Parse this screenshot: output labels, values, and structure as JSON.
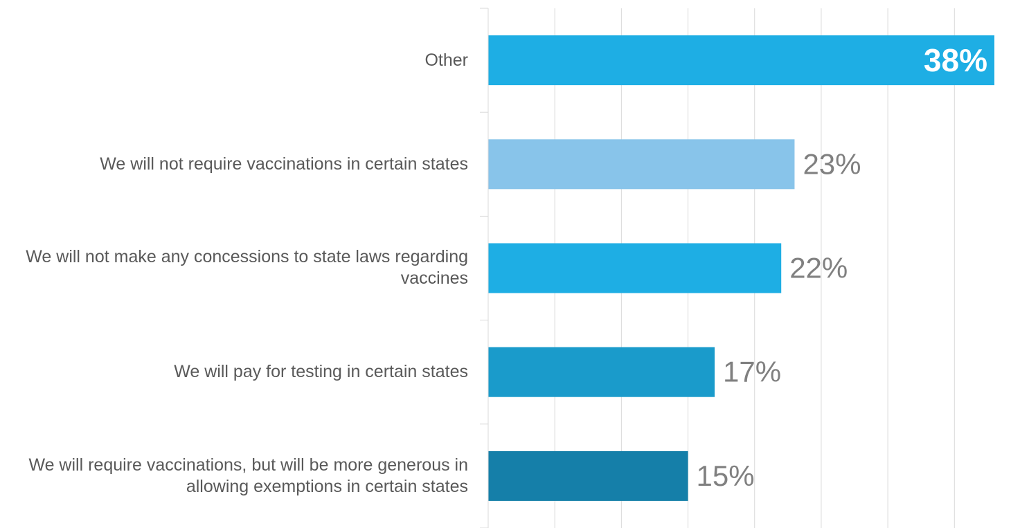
{
  "chart_data": {
    "type": "bar",
    "orientation": "horizontal",
    "categories": [
      "Other",
      "We will not require vaccinations in certain states",
      "We will not make any concessions to state laws regarding vaccines",
      "We will pay for testing in certain states",
      "We will require vaccinations, but will be more generous in allowing exemptions in certain states"
    ],
    "values": [
      38,
      23,
      22,
      17,
      15
    ],
    "value_labels": [
      "38%",
      "23%",
      "22%",
      "17%",
      "15%"
    ],
    "colors": [
      "#1eaee4",
      "#88c4ea",
      "#1eaee4",
      "#1a9bcb",
      "#157fa9"
    ],
    "xlim": [
      0,
      38
    ],
    "xticks": [
      0,
      5,
      10,
      15,
      20,
      25,
      30,
      35
    ],
    "grid": true
  }
}
